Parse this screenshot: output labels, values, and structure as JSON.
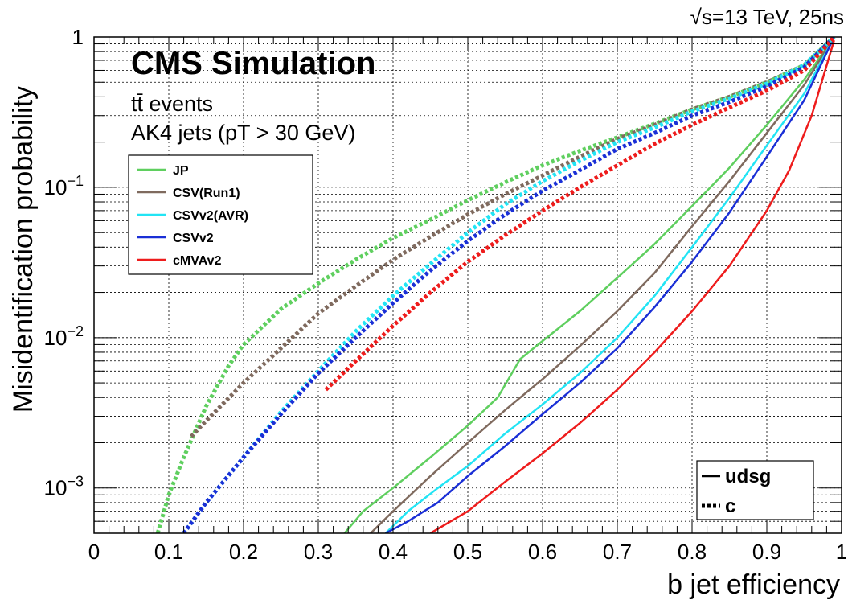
{
  "chart_data": {
    "type": "line",
    "title": "CMS Simulation",
    "energy_label": "√s=13 TeV, 25ns",
    "info_lines": [
      "tt̄ events",
      "AK4 jets (pT > 30 GeV)"
    ],
    "xlabel": "b jet efficiency",
    "ylabel": "Misidentification probability",
    "xlim": [
      0,
      1
    ],
    "ylim": [
      0.0005,
      1
    ],
    "yscale": "log",
    "grid": true,
    "x_ticks": [
      "0",
      "0.1",
      "0.2",
      "0.3",
      "0.4",
      "0.5",
      "0.6",
      "0.7",
      "0.8",
      "0.9",
      "1"
    ],
    "y_ticks": [
      {
        "value": 0.001,
        "base": "10",
        "exp": "−3"
      },
      {
        "value": 0.01,
        "base": "10",
        "exp": "−2"
      },
      {
        "value": 0.1,
        "base": "10",
        "exp": "−1"
      },
      {
        "value": 1,
        "base": "1",
        "exp": ""
      }
    ],
    "legend_taggers": [
      "JP",
      "CSV(Run1)",
      "CSVv2(AVR)",
      "CSVv2",
      "cMVAv2"
    ],
    "legend_styles": [
      {
        "label": "udsg",
        "style": "solid"
      },
      {
        "label": "c",
        "style": "dotted"
      }
    ],
    "colors": {
      "JP": "#5fcf5f",
      "CSV(Run1)": "#7f6a5e",
      "CSVv2(AVR)": "#22e4f4",
      "CSVv2": "#1a2fd6",
      "cMVAv2": "#ee1c1c"
    },
    "series": [
      {
        "name": "JP",
        "flavour": "udsg",
        "style": "solid",
        "x": [
          0.335,
          0.36,
          0.4,
          0.45,
          0.5,
          0.54,
          0.57,
          0.6,
          0.65,
          0.7,
          0.75,
          0.8,
          0.85,
          0.9,
          0.95,
          0.99
        ],
        "y": [
          0.0005,
          0.0007,
          0.001,
          0.0016,
          0.0026,
          0.004,
          0.0072,
          0.0095,
          0.015,
          0.025,
          0.042,
          0.075,
          0.135,
          0.26,
          0.52,
          1.0
        ]
      },
      {
        "name": "CSV(Run1)",
        "flavour": "udsg",
        "style": "solid",
        "x": [
          0.37,
          0.4,
          0.45,
          0.5,
          0.55,
          0.6,
          0.65,
          0.7,
          0.75,
          0.8,
          0.85,
          0.9,
          0.95,
          0.99
        ],
        "y": [
          0.0005,
          0.0007,
          0.0012,
          0.002,
          0.0033,
          0.0053,
          0.0088,
          0.015,
          0.027,
          0.055,
          0.11,
          0.23,
          0.48,
          1.0
        ]
      },
      {
        "name": "CSVv2(AVR)",
        "flavour": "udsg",
        "style": "solid",
        "x": [
          0.39,
          0.42,
          0.46,
          0.5,
          0.55,
          0.6,
          0.65,
          0.7,
          0.75,
          0.8,
          0.85,
          0.9,
          0.95,
          0.99
        ],
        "y": [
          0.0005,
          0.0007,
          0.001,
          0.0014,
          0.0023,
          0.0036,
          0.0058,
          0.01,
          0.019,
          0.04,
          0.085,
          0.19,
          0.42,
          1.0
        ]
      },
      {
        "name": "CSVv2",
        "flavour": "udsg",
        "style": "solid",
        "x": [
          0.39,
          0.42,
          0.46,
          0.5,
          0.55,
          0.6,
          0.65,
          0.7,
          0.75,
          0.8,
          0.85,
          0.9,
          0.95,
          0.99
        ],
        "y": [
          0.0005,
          0.0006,
          0.0008,
          0.0012,
          0.0019,
          0.0031,
          0.005,
          0.0085,
          0.016,
          0.032,
          0.068,
          0.16,
          0.38,
          1.0
        ]
      },
      {
        "name": "cMVAv2",
        "flavour": "udsg",
        "style": "solid",
        "x": [
          0.45,
          0.5,
          0.55,
          0.6,
          0.65,
          0.7,
          0.75,
          0.8,
          0.85,
          0.9,
          0.93,
          0.96,
          0.99
        ],
        "y": [
          0.0005,
          0.0007,
          0.0011,
          0.0017,
          0.0027,
          0.0045,
          0.008,
          0.015,
          0.03,
          0.07,
          0.13,
          0.3,
          0.95
        ]
      },
      {
        "name": "JP",
        "flavour": "c",
        "style": "dotted",
        "x": [
          0.085,
          0.1,
          0.12,
          0.15,
          0.18,
          0.2,
          0.25,
          0.3,
          0.35,
          0.4,
          0.45,
          0.5,
          0.55,
          0.6,
          0.65,
          0.7,
          0.75,
          0.8,
          0.85,
          0.9,
          0.95,
          0.99
        ],
        "y": [
          0.0005,
          0.0009,
          0.0016,
          0.0035,
          0.0065,
          0.009,
          0.0155,
          0.023,
          0.033,
          0.046,
          0.061,
          0.082,
          0.108,
          0.14,
          0.175,
          0.215,
          0.265,
          0.33,
          0.4,
          0.5,
          0.65,
          1.0
        ]
      },
      {
        "name": "CSV(Run1)",
        "flavour": "c",
        "style": "dotted",
        "x": [
          0.13,
          0.15,
          0.2,
          0.25,
          0.3,
          0.35,
          0.4,
          0.45,
          0.5,
          0.55,
          0.6,
          0.65,
          0.7,
          0.75,
          0.8,
          0.85,
          0.9,
          0.95,
          0.99
        ],
        "y": [
          0.0022,
          0.0028,
          0.005,
          0.0085,
          0.0145,
          0.022,
          0.033,
          0.047,
          0.066,
          0.09,
          0.12,
          0.16,
          0.21,
          0.26,
          0.33,
          0.4,
          0.5,
          0.65,
          1.0
        ]
      },
      {
        "name": "CSVv2(AVR)",
        "flavour": "c",
        "style": "dotted",
        "x": [
          0.12,
          0.15,
          0.2,
          0.25,
          0.3,
          0.35,
          0.4,
          0.45,
          0.5,
          0.55,
          0.6,
          0.65,
          0.7,
          0.75,
          0.8,
          0.85,
          0.9,
          0.95,
          0.99
        ],
        "y": [
          0.0005,
          0.0008,
          0.0016,
          0.0032,
          0.006,
          0.011,
          0.019,
          0.031,
          0.05,
          0.077,
          0.11,
          0.15,
          0.2,
          0.25,
          0.32,
          0.39,
          0.49,
          0.65,
          1.0
        ]
      },
      {
        "name": "CSVv2",
        "flavour": "c",
        "style": "dotted",
        "x": [
          0.12,
          0.15,
          0.2,
          0.25,
          0.3,
          0.35,
          0.4,
          0.45,
          0.5,
          0.55,
          0.6,
          0.65,
          0.7,
          0.75,
          0.8,
          0.85,
          0.9,
          0.95,
          0.99
        ],
        "y": [
          0.0005,
          0.0008,
          0.0016,
          0.0031,
          0.0058,
          0.01,
          0.017,
          0.028,
          0.044,
          0.066,
          0.095,
          0.13,
          0.18,
          0.23,
          0.3,
          0.37,
          0.47,
          0.63,
          1.0
        ]
      },
      {
        "name": "cMVAv2",
        "flavour": "c",
        "style": "dotted",
        "x": [
          0.31,
          0.35,
          0.4,
          0.45,
          0.5,
          0.55,
          0.6,
          0.65,
          0.7,
          0.75,
          0.8,
          0.85,
          0.9,
          0.95,
          0.99
        ],
        "y": [
          0.0045,
          0.007,
          0.012,
          0.02,
          0.032,
          0.048,
          0.07,
          0.1,
          0.14,
          0.195,
          0.26,
          0.34,
          0.44,
          0.6,
          1.0
        ]
      }
    ]
  }
}
